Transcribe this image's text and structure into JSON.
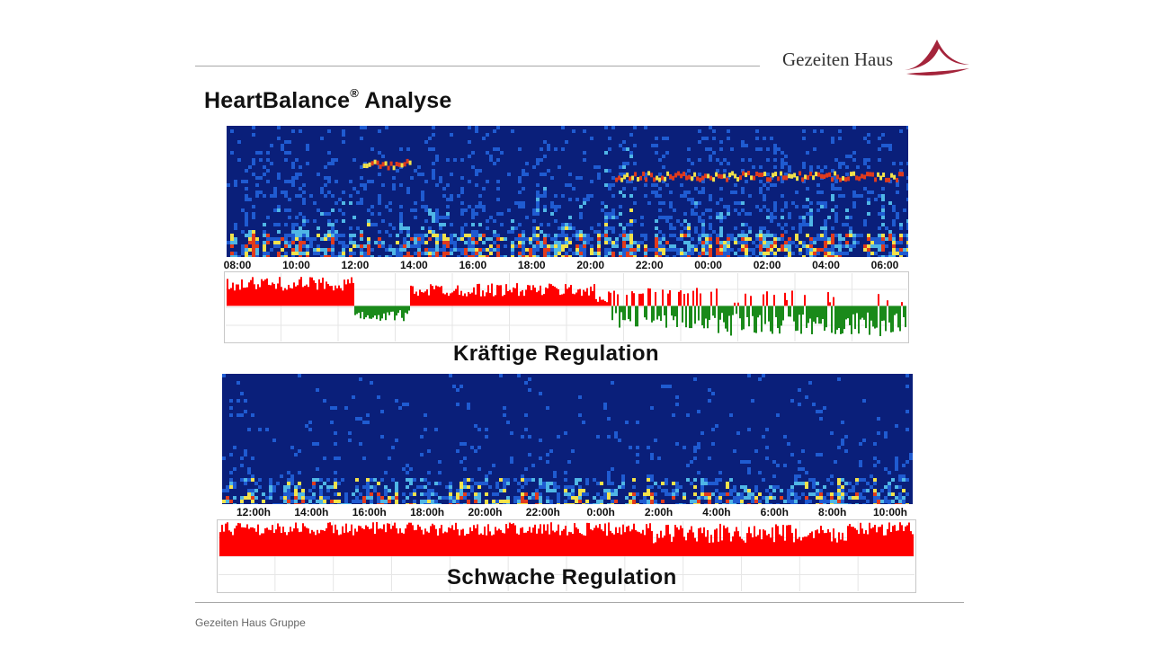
{
  "header": {
    "brand_name": "Gezeiten Haus",
    "logo_icon": "peak-swoosh-icon",
    "brand_color": "#a4243b"
  },
  "slide": {
    "title": "HeartBalance",
    "title_mark": "®",
    "title_suffix": " Analyse"
  },
  "footer": {
    "text": "Gezeiten Haus Gruppe"
  },
  "chart_data": [
    {
      "type": "heatmap",
      "title": "",
      "x_ticks": [
        "08:00",
        "10:00",
        "12:00",
        "14:00",
        "16:00",
        "18:00",
        "20:00",
        "22:00",
        "00:00",
        "02:00",
        "04:00",
        "06:00"
      ],
      "colorscale": [
        "#0a1f7a",
        "#1f5bd1",
        "#4fb6e6",
        "#f2e24a",
        "#e23b1c"
      ],
      "description_level": "high-frequency noise with band from 12:30-14:30 and 21:30-07:00"
    },
    {
      "type": "area",
      "caption": "Kräftige Regulation",
      "positive_color": "#ff0000",
      "negative_color": "#1a8a1a",
      "segments": [
        {
          "from": "08:00",
          "to": "12:30",
          "sign": "positive"
        },
        {
          "from": "12:30",
          "to": "14:00",
          "sign": "negative"
        },
        {
          "from": "14:00",
          "to": "21:00",
          "sign": "positive"
        },
        {
          "from": "21:00",
          "to": "07:30",
          "sign": "mixed-negative"
        }
      ]
    },
    {
      "type": "heatmap",
      "title": "",
      "x_ticks": [
        "12:00h",
        "14:00h",
        "16:00h",
        "18:00h",
        "20:00h",
        "22:00h",
        "0:00h",
        "2:00h",
        "4:00h",
        "6:00h",
        "8:00h",
        "10:00h"
      ],
      "colorscale": [
        "#0a1f7a",
        "#1f5bd1",
        "#4fb6e6",
        "#f2e24a",
        "#e23b1c"
      ],
      "description_level": "mostly low intensity, activity only near baseline"
    },
    {
      "type": "area",
      "caption": "Schwache Regulation",
      "positive_color": "#ff0000",
      "segments": [
        {
          "from": "12:00h",
          "to": "10:00h",
          "sign": "positive"
        }
      ]
    }
  ]
}
